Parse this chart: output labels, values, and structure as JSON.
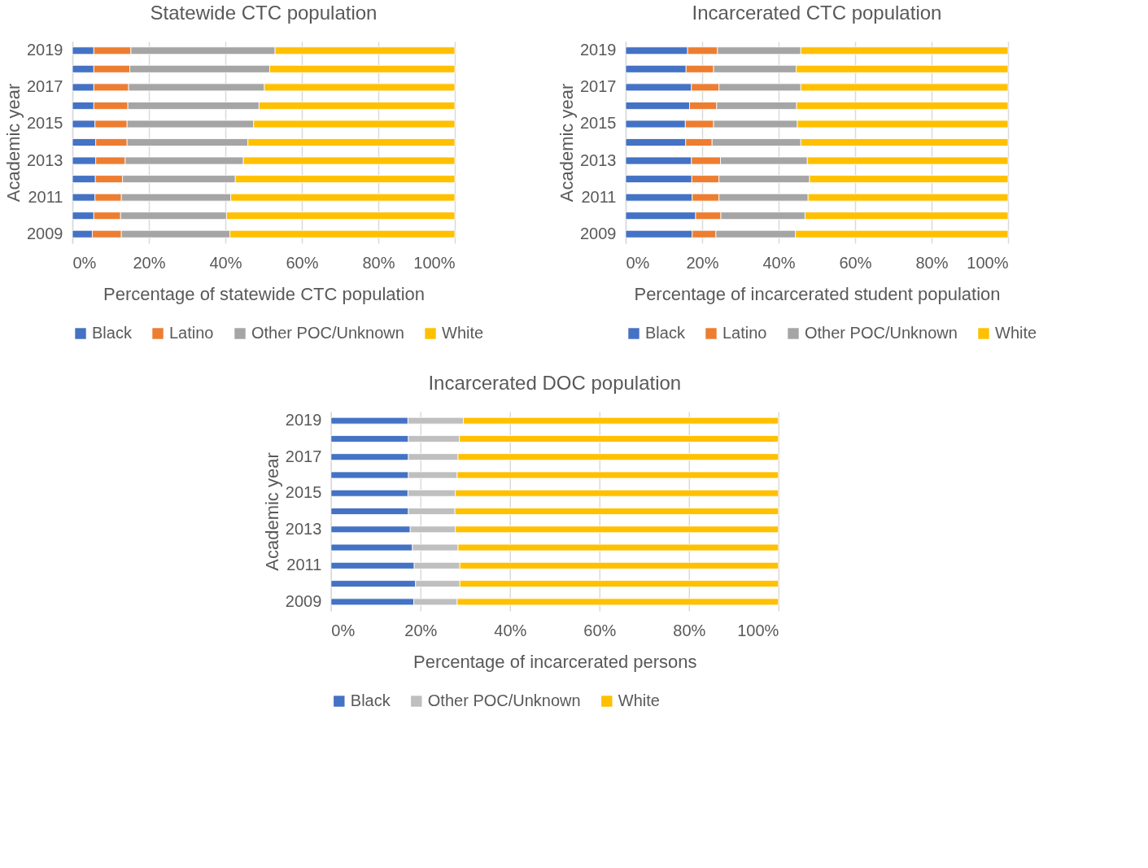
{
  "chart_data": [
    {
      "type": "bar",
      "orientation": "horizontal",
      "stacked": true,
      "title": "Statewide CTC population",
      "xlabel": "Percentage of statewide CTC population",
      "ylabel": "Academic year",
      "categories": [
        "2019",
        null,
        "2017",
        null,
        "2015",
        null,
        "2013",
        null,
        "2011",
        null,
        "2009"
      ],
      "series": [
        {
          "name": "Black",
          "color": "#4472c4",
          "values": [
            5.6,
            5.6,
            5.6,
            5.6,
            5.9,
            6.1,
            6.1,
            6.0,
            5.9,
            5.6,
            5.2
          ]
        },
        {
          "name": "Latino",
          "color": "#ed7d31",
          "values": [
            9.7,
            9.4,
            9.1,
            8.9,
            8.4,
            8.2,
            7.7,
            7.1,
            6.9,
            7.0,
            7.6
          ]
        },
        {
          "name": "Other POC/Unknown",
          "color": "#a5a5a5",
          "values": [
            37.7,
            36.6,
            35.5,
            34.3,
            33.1,
            31.6,
            30.9,
            29.5,
            28.6,
            27.7,
            28.4
          ]
        },
        {
          "name": "White",
          "color": "#ffc000",
          "values": [
            47.0,
            48.4,
            49.8,
            51.2,
            52.6,
            54.1,
            55.3,
            57.4,
            58.6,
            59.7,
            58.8
          ]
        }
      ],
      "xlim": [
        0,
        100
      ],
      "xticks": [
        {
          "value": 0,
          "label": "0%"
        },
        {
          "value": 20,
          "label": "20%"
        },
        {
          "value": 40,
          "label": "40%"
        },
        {
          "value": 60,
          "label": "60%"
        },
        {
          "value": 80,
          "label": "80%"
        },
        {
          "value": 100,
          "label": "100%"
        }
      ],
      "grid": "x",
      "legend": "bottom"
    },
    {
      "type": "bar",
      "orientation": "horizontal",
      "stacked": true,
      "title": "Incarcerated CTC population",
      "xlabel": "Percentage of incarcerated student population",
      "ylabel": "Academic year",
      "categories": [
        "2019",
        null,
        "2017",
        null,
        "2015",
        null,
        "2013",
        null,
        "2011",
        null,
        "2009"
      ],
      "series": [
        {
          "name": "Black",
          "color": "#4472c4",
          "values": [
            16.2,
            15.8,
            17.2,
            16.7,
            15.6,
            15.7,
            17.2,
            17.3,
            17.4,
            18.3,
            17.4
          ]
        },
        {
          "name": "Latino",
          "color": "#ed7d31",
          "values": [
            7.8,
            7.2,
            7.2,
            7.1,
            7.4,
            6.9,
            7.6,
            7.1,
            7.0,
            6.6,
            6.2
          ]
        },
        {
          "name": "Other POC/Unknown",
          "color": "#a5a5a5",
          "values": [
            21.8,
            21.6,
            21.4,
            20.9,
            21.9,
            23.2,
            22.7,
            23.7,
            23.3,
            22.0,
            20.8
          ]
        },
        {
          "name": "White",
          "color": "#ffc000",
          "values": [
            54.2,
            55.4,
            54.2,
            55.3,
            55.1,
            54.2,
            52.5,
            51.9,
            52.3,
            53.1,
            55.6
          ]
        }
      ],
      "xlim": [
        0,
        100
      ],
      "xticks": [
        {
          "value": 0,
          "label": "0%"
        },
        {
          "value": 20,
          "label": "20%"
        },
        {
          "value": 40,
          "label": "40%"
        },
        {
          "value": 60,
          "label": "60%"
        },
        {
          "value": 80,
          "label": "80%"
        },
        {
          "value": 100,
          "label": "100%"
        }
      ],
      "grid": "x",
      "legend": "bottom"
    },
    {
      "type": "bar",
      "orientation": "horizontal",
      "stacked": true,
      "title": "Incarcerated DOC population",
      "xlabel": "Percentage of incarcerated persons",
      "ylabel": "Academic year",
      "categories": [
        "2019",
        null,
        "2017",
        null,
        "2015",
        null,
        "2013",
        null,
        "2011",
        null,
        "2009"
      ],
      "series": [
        {
          "name": "Black",
          "color": "#4472c4",
          "values": [
            17.2,
            17.3,
            17.3,
            17.3,
            17.2,
            17.3,
            17.7,
            18.2,
            18.6,
            18.9,
            18.5
          ]
        },
        {
          "name": "Other POC/Unknown",
          "color": "#bfbfbf",
          "values": [
            12.4,
            11.4,
            11.1,
            10.9,
            10.6,
            10.4,
            10.1,
            10.2,
            10.2,
            9.9,
            9.7
          ]
        },
        {
          "name": "White",
          "color": "#ffc000",
          "values": [
            70.4,
            71.3,
            71.6,
            71.8,
            72.2,
            72.3,
            72.2,
            71.6,
            71.2,
            71.2,
            71.8
          ]
        }
      ],
      "xlim": [
        0,
        100
      ],
      "xticks": [
        {
          "value": 0,
          "label": "0%"
        },
        {
          "value": 20,
          "label": "20%"
        },
        {
          "value": 40,
          "label": "40%"
        },
        {
          "value": 60,
          "label": "60%"
        },
        {
          "value": 80,
          "label": "80%"
        },
        {
          "value": 100,
          "label": "100%"
        }
      ],
      "grid": "x",
      "legend": "bottom"
    }
  ]
}
